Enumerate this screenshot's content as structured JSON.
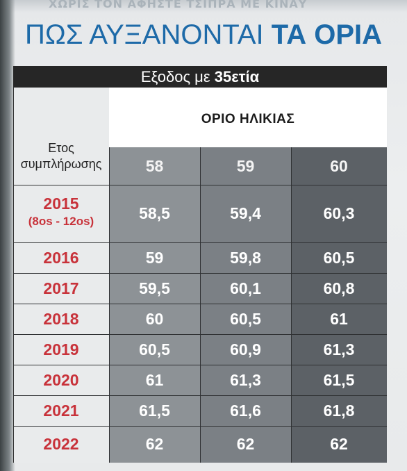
{
  "header": {
    "ghost_text": "ΧΩΡΙΣ ΤΟΝ ΑΦΗΣΤΕ ΤΣΙΠΡΑ ΜΕ ΚΙΝΑΥ",
    "title_light": "ΠΩΣ ΑΥΞΑΝΟΝΤΑΙ",
    "title_bold": "ΤΑ ΟΡΙΑ"
  },
  "table": {
    "band_prefix": "Εξοδος με",
    "band_bold": "35ετία",
    "age_title": "ΟΡΙΟ ΗΛΙΚΙΑΣ",
    "year_head_line1": "Ετος",
    "year_head_line2": "συμπλήρωσης",
    "ages": [
      "58",
      "59",
      "60"
    ],
    "rows": [
      {
        "year": "2015",
        "sub": "(8os - 12os)",
        "values": [
          "58,5",
          "59,4",
          "60,3"
        ]
      },
      {
        "year": "2016",
        "values": [
          "59",
          "59,8",
          "60,5"
        ]
      },
      {
        "year": "2017",
        "values": [
          "59,5",
          "60,1",
          "60,8"
        ]
      },
      {
        "year": "2018",
        "values": [
          "60",
          "60,5",
          "61"
        ]
      },
      {
        "year": "2019",
        "values": [
          "60,5",
          "60,9",
          "61,3"
        ]
      },
      {
        "year": "2020",
        "values": [
          "61",
          "61,3",
          "61,5"
        ]
      },
      {
        "year": "2021",
        "values": [
          "61,5",
          "61,6",
          "61,8"
        ]
      },
      {
        "year": "2022",
        "values": [
          "62",
          "62",
          "62"
        ]
      }
    ]
  },
  "colors": {
    "title_blue": "#1d6aa8",
    "year_red": "#c8323a",
    "band_black": "#262626"
  }
}
